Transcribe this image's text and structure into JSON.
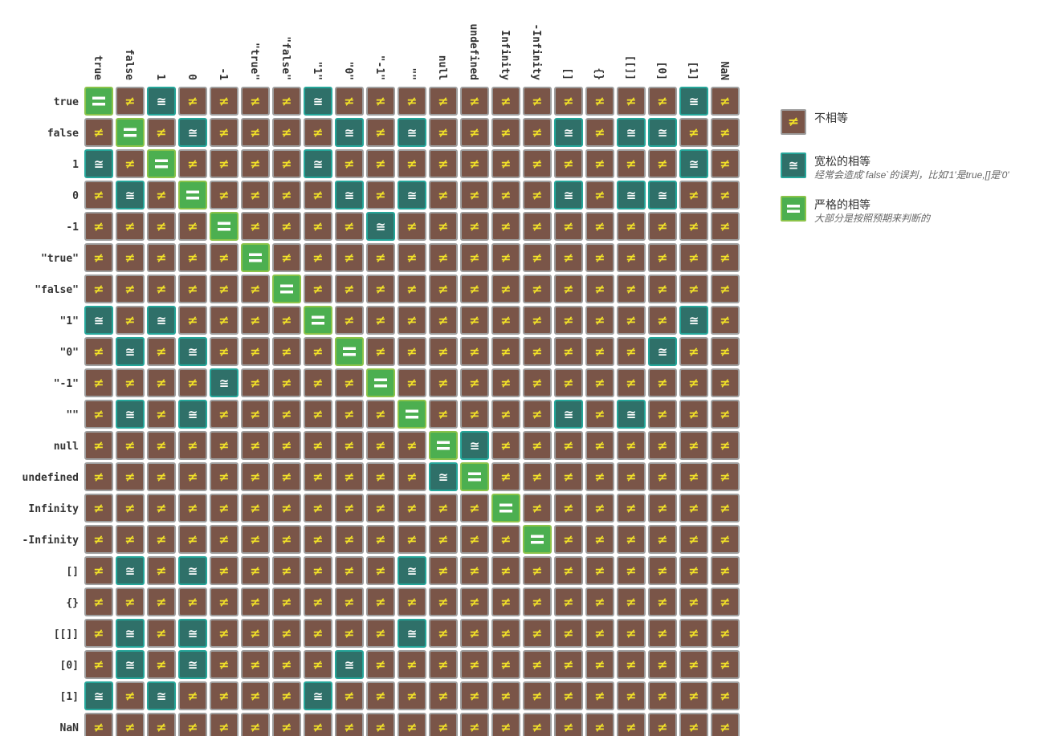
{
  "chart_data": {
    "type": "heatmap",
    "title": "",
    "columns": [
      "true",
      "false",
      "1",
      "0",
      "-1",
      "\"true\"",
      "\"false\"",
      "\"1\"",
      "\"0\"",
      "\"-1\"",
      "\"\"",
      "null",
      "undefined",
      "Infinity",
      "-Infinity",
      "[]",
      "{}",
      "[[]]",
      "[0]",
      "[1]",
      "NaN"
    ],
    "rows": [
      "true",
      "false",
      "1",
      "0",
      "-1",
      "\"true\"",
      "\"false\"",
      "\"1\"",
      "\"0\"",
      "\"-1\"",
      "\"\"",
      "null",
      "undefined",
      "Infinity",
      "-Infinity",
      "[]",
      "{}",
      "[[]]",
      "[0]",
      "[1]",
      "NaN"
    ],
    "symbols": {
      "strict": "=",
      "loose": "≅",
      "unequal": "≠"
    },
    "colors": {
      "strict": "#4caf50",
      "strict_border": "#8bc34a",
      "loose": "#2f7069",
      "loose_border": "#26a69a",
      "unequal": "#7a5548",
      "unequal_border": "#9e9e9e",
      "unequal_symbol": "#f2e227"
    },
    "matrix": [
      "SNLNNNNLNNNNNNNNNNNLN",
      "NSNLNNNNLNLNNNNLNLLNN",
      "LNSNNNNLNNNNNNNNNNNLN",
      "NLNSNNNNLNLNNNNLNLLNN",
      "NNNNSNNNNLNNNNNNNNNNN",
      "NNNNNSNNNNNNNNNNNNNNN",
      "NNNNNNSNNNNNNNNNNNNNN",
      "LNLNNNNSNNNNNNNNNNNLN",
      "NLNLNNNNSNNNNNNNNNLNN",
      "NNNNLNNNNSNNNNNNNNNNN",
      "NLNLNNNNNNSNNNNLNLNNN",
      "NNNNNNNNNNNSLNNNNNNNN",
      "NNNNNNNNNNNLSNNNNNNNN",
      "NNNNNNNNNNNNNSNNNNNNN",
      "NNNNNNNNNNNNNNSNNNNNN",
      "NLNLNNNNNNLNNNNNNNNNN",
      "NNNNNNNNNNNNNNNNNNNNN",
      "NLNLNNNNNNLNNNNNNNNNN",
      "NLNLNNNNLNNNNNNNNNNNN",
      "LNLNNNNLNNNNNNNNNNNNN",
      "NNNNNNNNNNNNNNNNNNNNN"
    ],
    "legend_position": "right",
    "legend": [
      {
        "key": "unequal",
        "label": "不相等",
        "description": ""
      },
      {
        "key": "loose",
        "label": "宽松的相等",
        "description": "经常会造成`false`的误判，比如'1'是true,[]是'0'"
      },
      {
        "key": "strict",
        "label": "严格的相等",
        "description": "大部分是按照预期来判断的"
      }
    ]
  }
}
